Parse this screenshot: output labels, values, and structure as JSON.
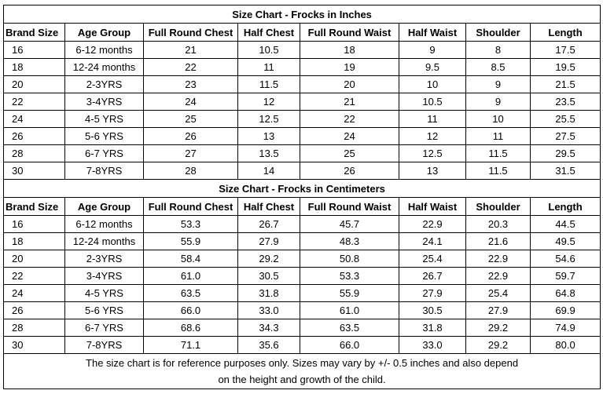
{
  "tables": [
    {
      "title": "Size Chart - Frocks in Inches",
      "header": [
        "Brand Size",
        "Age Group",
        "Full Round Chest",
        "Half Chest",
        "Full Round Waist",
        "Half Waist",
        "Shoulder",
        "Length"
      ],
      "rows": [
        [
          "16",
          "6-12 months",
          "21",
          "10.5",
          "18",
          "9",
          "8",
          "17.5"
        ],
        [
          "18",
          "12-24 months",
          "22",
          "11",
          "19",
          "9.5",
          "8.5",
          "19.5"
        ],
        [
          "20",
          "2-3YRS",
          "23",
          "11.5",
          "20",
          "10",
          "9",
          "21.5"
        ],
        [
          "22",
          "3-4YRS",
          "24",
          "12",
          "21",
          "10.5",
          "9",
          "23.5"
        ],
        [
          "24",
          "4-5 YRS",
          "25",
          "12.5",
          "22",
          "11",
          "10",
          "25.5"
        ],
        [
          "26",
          "5-6 YRS",
          "26",
          "13",
          "24",
          "12",
          "11",
          "27.5"
        ],
        [
          "28",
          "6-7 YRS",
          "27",
          "13.5",
          "25",
          "12.5",
          "11.5",
          "29.5"
        ],
        [
          "30",
          "7-8YRS",
          "28",
          "14",
          "26",
          "13",
          "11.5",
          "31.5"
        ]
      ]
    },
    {
      "title": "Size Chart - Frocks in Centimeters",
      "header": [
        "Brand Size",
        "Age Group",
        "Full Round Chest",
        "Half Chest",
        "Full Round Waist",
        "Half Waist",
        "Shoulder",
        "Length"
      ],
      "rows": [
        [
          "16",
          "6-12 months",
          "53.3",
          "26.7",
          "45.7",
          "22.9",
          "20.3",
          "44.5"
        ],
        [
          "18",
          "12-24 months",
          "55.9",
          "27.9",
          "48.3",
          "24.1",
          "21.6",
          "49.5"
        ],
        [
          "20",
          "2-3YRS",
          "58.4",
          "29.2",
          "50.8",
          "25.4",
          "22.9",
          "54.6"
        ],
        [
          "22",
          "3-4YRS",
          "61.0",
          "30.5",
          "53.3",
          "26.7",
          "22.9",
          "59.7"
        ],
        [
          "24",
          "4-5 YRS",
          "63.5",
          "31.8",
          "55.9",
          "27.9",
          "25.4",
          "64.8"
        ],
        [
          "26",
          "5-6 YRS",
          "66.0",
          "33.0",
          "61.0",
          "30.5",
          "27.9",
          "69.9"
        ],
        [
          "28",
          "6-7 YRS",
          "68.6",
          "34.3",
          "63.5",
          "31.8",
          "29.2",
          "74.9"
        ],
        [
          "30",
          "7-8YRS",
          "71.1",
          "35.6",
          "66.0",
          "33.0",
          "29.2",
          "80.0"
        ]
      ]
    }
  ],
  "footer": [
    "The size chart is for reference purposes only. Sizes may vary by +/- 0.5 inches and also depend",
    "on the height and growth of the child."
  ]
}
